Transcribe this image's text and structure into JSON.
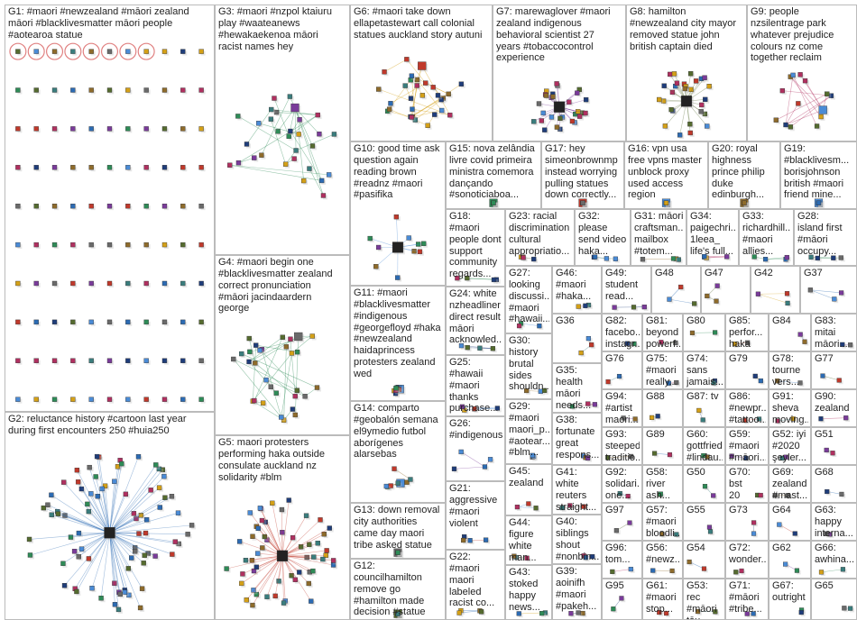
{
  "palette": [
    "#1f3d7a",
    "#2c6bb3",
    "#4a8bd6",
    "#7a3b9a",
    "#c0392b",
    "#2e8b57",
    "#8e6b2b",
    "#6a6a6a",
    "#d4a017",
    "#3a7d7d",
    "#b03060",
    "#556b2f"
  ],
  "groups": [
    {
      "id": "G1",
      "label": "G1: #maori #newzealand #māori zealand\nmāori #blacklivesmatter māori people\n#aotearoa statue",
      "fs": 11,
      "style": "grid",
      "n": 110,
      "rings": 8,
      "accent": "#1f3d7a"
    },
    {
      "id": "G2",
      "label": "G2: reluctance history #cartoon last year\nduring first encounters 250 #huia250",
      "fs": 11,
      "style": "star",
      "n": 80,
      "accent": "#2c6bb3"
    },
    {
      "id": "G3",
      "label": "G3: #maori #nzpol ktaiuru\nplay #waateanews\n#hewakaekenoa māori\nracist names hey",
      "fs": 11,
      "style": "cluster",
      "n": 30,
      "accent": "#2e8b57"
    },
    {
      "id": "G4",
      "label": "G4: #maori begin one\n#blacklivesmatter zealand\ncorrect pronunciation\n#māori jacindaardern\ngeorge",
      "fs": 11,
      "style": "cluster",
      "n": 30,
      "accent": "#2e8b57"
    },
    {
      "id": "G5",
      "label": "G5: maori protesters\nperforming haka outside\nconsulate auckland nz\nsolidarity #blm",
      "fs": 11,
      "style": "star",
      "n": 55,
      "accent": "#c0392b"
    },
    {
      "id": "G6",
      "label": "G6: #maori take down\nellapetastewart call colonial\nstatues auckland story autuni",
      "fs": 11,
      "style": "cluster",
      "n": 30,
      "accent": "#d4a017"
    },
    {
      "id": "G7",
      "label": "G7: marewaglover #maori\nzealand indigenous\nbehavioral scientist 27\nyears #tobaccocontrol\nexperience",
      "fs": 11,
      "style": "star",
      "n": 30,
      "accent": "#7a3b9a"
    },
    {
      "id": "G8",
      "label": "G8: hamilton\n#newzealand city mayor\nremoved statue john\nbritish captain died",
      "fs": 11,
      "style": "star",
      "n": 28,
      "accent": "#556b2f"
    },
    {
      "id": "G9",
      "label": "G9: people\nnzsilentrage park\nwhatever prejudice\ncolours nz come\ntogether reclaim",
      "fs": 11,
      "style": "cluster",
      "n": 14,
      "accent": "#b03060"
    },
    {
      "id": "G10",
      "label": "G10: good time ask\nquestion again\nreading brown\n#readnz #maori\n#pasifika",
      "fs": 11,
      "style": "star",
      "n": 10,
      "accent": "#4a8bd6"
    },
    {
      "id": "G15",
      "label": "G15: nova zelândia\nlivre covid primeira\nministra comemora\ndançando\n#sonoticiaboa...",
      "fs": 11,
      "style": "cluster",
      "n": 8,
      "accent": "#c0392b"
    },
    {
      "id": "G17",
      "label": "G17: hey\nsimeonbrownmp\ninstead worrying\npulling statues\ndown correctly...",
      "fs": 11,
      "style": "cluster",
      "n": 7,
      "accent": "#b03060"
    },
    {
      "id": "G16",
      "label": "G16: vpn usa\nfree vpns master\nunblock proxy\nused access\nregion",
      "fs": 11,
      "style": "cluster",
      "n": 5,
      "accent": "#2c6bb3"
    },
    {
      "id": "G20",
      "label": "G20: royal\nhighness\nprince philip\nduke\nedinburgh...",
      "fs": 11,
      "style": "cluster",
      "n": 5,
      "accent": "#6a6a6a"
    },
    {
      "id": "G19",
      "label": "G19:\n#blacklivesm...\nborisjohnson\nbritish #maori\nfriend mine...",
      "fs": 11,
      "style": "cluster",
      "n": 5,
      "accent": "#7a3b9a"
    },
    {
      "id": "G11",
      "label": "G11: #maori\n#blacklivesmatter\n#indigenous\n#georgefloyd #haka\n#newzealand\nhaidaprincess\nprotesters zealand\nwed",
      "fs": 11,
      "style": "cluster",
      "n": 9,
      "accent": "#4a8bd6"
    },
    {
      "id": "G14",
      "label": "G14: comparto\n#geobalón semana\nel9ymedio futbol\naborígenes\nalarsebas",
      "fs": 11,
      "style": "cluster",
      "n": 8,
      "accent": "#8e6b2b"
    },
    {
      "id": "G13",
      "label": "G13: down removal\ncity authorities\ncame day maori\ntribe asked statue",
      "fs": 11,
      "style": "cluster",
      "n": 7,
      "accent": "#3a7d7d"
    },
    {
      "id": "G12",
      "label": "G12:\ncouncilhamilton\nremove go\n#hamilton made\ndecision #statue\ncoloniser morning...",
      "fs": 11,
      "style": "cluster",
      "n": 7,
      "accent": "#556b2f"
    },
    {
      "id": "G18",
      "label": "G18:\n#maori\npeople dont\nsupport\ncommunity\nregards...",
      "fs": 11,
      "style": "small",
      "n": 4,
      "accent": "#2e8b57"
    },
    {
      "id": "G24",
      "label": "G24: white\nnzheadliner\ndirect result\nmāori\nacknowled...",
      "fs": 11,
      "style": "small",
      "n": 4,
      "accent": "#1f3d7a"
    },
    {
      "id": "G25",
      "label": "G25:\n#hawaii\n#maori\nthanks\npurchase...",
      "fs": 11,
      "style": "small",
      "n": 4,
      "accent": "#4a8bd6"
    },
    {
      "id": "G26",
      "label": "G26:\n#indigenous",
      "fs": 11,
      "style": "small",
      "n": 4,
      "accent": "#7a3b9a"
    },
    {
      "id": "G21",
      "label": "G21:\naggressive\n#maori\nviolent",
      "fs": 11,
      "style": "small",
      "n": 4,
      "accent": "#c0392b"
    },
    {
      "id": "G22",
      "label": "G22:\n#maori\nmaori\nlabeled\nracist co...",
      "fs": 11,
      "style": "small",
      "n": 4,
      "accent": "#2c6bb3"
    },
    {
      "id": "G23",
      "label": "G23: racial\ndiscrimination\ncultural\nappropriatio...",
      "fs": 11,
      "style": "small",
      "n": 4,
      "accent": "#556b2f"
    },
    {
      "id": "G32",
      "label": "G32:\nplease\nsend video\nhaka...",
      "fs": 11,
      "style": "small",
      "n": 4,
      "accent": "#3a7d7d"
    },
    {
      "id": "G31",
      "label": "G31: māori\ncraftsman...\nmailbox\n#totem...",
      "fs": 11,
      "style": "small",
      "n": 4,
      "accent": "#8e6b2b"
    },
    {
      "id": "G34",
      "label": "G34:\npaigechri...\n1leea_\nlife's full...",
      "fs": 11,
      "style": "small",
      "n": 4,
      "accent": "#b03060"
    },
    {
      "id": "G33",
      "label": "G33:\nrichardhill...\n#maori\nallies...",
      "fs": 11,
      "style": "small",
      "n": 4,
      "accent": "#2e8b57"
    },
    {
      "id": "G28",
      "label": "G28:\nisland first\n#māori\noccupy...",
      "fs": 11,
      "style": "small",
      "n": 4,
      "accent": "#2e8b57"
    },
    {
      "id": "G27",
      "label": "G27:\nlooking\ndiscussi...\n#maori\n#hawaii...",
      "fs": 11,
      "style": "small",
      "n": 3,
      "accent": "#4a8bd6"
    },
    {
      "id": "G46",
      "label": "G46:\n#maori\n#haka...",
      "fs": 11,
      "style": "small",
      "n": 3,
      "accent": "#7a3b9a"
    },
    {
      "id": "G49",
      "label": "G49:\nstudent\nread...",
      "fs": 11,
      "style": "small",
      "n": 3,
      "accent": "#1f3d7a"
    },
    {
      "id": "G48",
      "label": "G48",
      "fs": 11,
      "style": "small",
      "n": 3,
      "accent": "#2c6bb3"
    },
    {
      "id": "G47",
      "label": "G47",
      "fs": 11,
      "style": "small",
      "n": 3,
      "accent": "#556b2f"
    },
    {
      "id": "G42",
      "label": "G42",
      "fs": 11,
      "style": "small",
      "n": 3,
      "accent": "#d4a017"
    },
    {
      "id": "G37",
      "label": "G37",
      "fs": 11,
      "style": "small",
      "n": 3,
      "accent": "#2c6bb3"
    },
    {
      "id": "G30",
      "label": "G30:\nhistory\nbrutal\nsides\nshouldn...",
      "fs": 11,
      "style": "small",
      "n": 3,
      "accent": "#8e6b2b"
    },
    {
      "id": "G36",
      "label": "G36",
      "fs": 11,
      "style": "small",
      "n": 3,
      "accent": "#3a7d7d"
    },
    {
      "id": "G35",
      "label": "G35:\nhealth\nmāori\nneeds...",
      "fs": 11,
      "style": "small",
      "n": 3,
      "accent": "#b03060"
    },
    {
      "id": "G29",
      "label": "G29:\n#maori\nmaori_p...\n#aotear...\n#blm...",
      "fs": 11,
      "style": "small",
      "n": 3,
      "accent": "#c0392b"
    },
    {
      "id": "G38",
      "label": "G38:\nfortunate\ngreat\nrespons...",
      "fs": 11,
      "style": "small",
      "n": 3,
      "accent": "#2e8b57"
    },
    {
      "id": "G45",
      "label": "G45:\nzealand",
      "fs": 11,
      "style": "small",
      "n": 3,
      "accent": "#4a8bd6"
    },
    {
      "id": "G41",
      "label": "G41:\nwhite\nreuters\nstraight...",
      "fs": 11,
      "style": "small",
      "n": 3,
      "accent": "#6a6a6a"
    },
    {
      "id": "G44",
      "label": "G44:\nfigure\nwhite\nman...",
      "fs": 11,
      "style": "small",
      "n": 3,
      "accent": "#556b2f"
    },
    {
      "id": "G40",
      "label": "G40:\nsiblings\nshout\n#nonbin...",
      "fs": 11,
      "style": "small",
      "n": 3,
      "accent": "#7a3b9a"
    },
    {
      "id": "G43",
      "label": "G43:\nstoked\nhappy\nnews...",
      "fs": 11,
      "style": "small",
      "n": 3,
      "accent": "#d4a017"
    },
    {
      "id": "G39",
      "label": "G39:\naoinifh\n#maori\n#pakeh...",
      "fs": 11,
      "style": "small",
      "n": 3,
      "accent": "#1f3d7a"
    },
    {
      "id": "G82",
      "label": "G82:\nfacebo...\ninstagr...",
      "fs": 11,
      "style": "small",
      "n": 2,
      "accent": "#2c6bb3"
    },
    {
      "id": "G81",
      "label": "G81:\nbeyond\npowerf...",
      "fs": 11,
      "style": "small",
      "n": 2,
      "accent": "#556b2f"
    },
    {
      "id": "G80",
      "label": "G80",
      "fs": 11,
      "style": "small",
      "n": 2,
      "accent": "#2e8b57"
    },
    {
      "id": "G85",
      "label": "G85:\nperfor...\nhaka",
      "fs": 11,
      "style": "small",
      "n": 2,
      "accent": "#c0392b"
    },
    {
      "id": "G84",
      "label": "G84",
      "fs": 11,
      "style": "small",
      "n": 2,
      "accent": "#1f3d7a"
    },
    {
      "id": "G83",
      "label": "G83:\nmitai\nmāori...",
      "fs": 11,
      "style": "small",
      "n": 2,
      "accent": "#7a3b9a"
    },
    {
      "id": "G76",
      "label": "G76",
      "fs": 11,
      "style": "small",
      "n": 2,
      "accent": "#3a7d7d"
    },
    {
      "id": "G75",
      "label": "G75:\n#maori\nreally...",
      "fs": 11,
      "style": "small",
      "n": 2,
      "accent": "#b03060"
    },
    {
      "id": "G74",
      "label": "G74:\nsans\njamais...",
      "fs": 11,
      "style": "small",
      "n": 2,
      "accent": "#8e6b2b"
    },
    {
      "id": "G79",
      "label": "G79",
      "fs": 11,
      "style": "small",
      "n": 2,
      "accent": "#d4a017"
    },
    {
      "id": "G78",
      "label": "G78:\ntourne\nvers...",
      "fs": 11,
      "style": "small",
      "n": 2,
      "accent": "#2c6bb3"
    },
    {
      "id": "G77",
      "label": "G77",
      "fs": 11,
      "style": "small",
      "n": 2,
      "accent": "#556b2f"
    },
    {
      "id": "G94",
      "label": "G94:\n#artist\nmaori...",
      "fs": 11,
      "style": "small",
      "n": 2,
      "accent": "#7a3b9a"
    },
    {
      "id": "G88",
      "label": "G88",
      "fs": 11,
      "style": "small",
      "n": 2,
      "accent": "#2e8b57"
    },
    {
      "id": "G87",
      "label": "G87: tv",
      "fs": 11,
      "style": "small",
      "n": 2,
      "accent": "#1f3d7a"
    },
    {
      "id": "G86",
      "label": "G86:\n#newpr...\n#tattoo...",
      "fs": 11,
      "style": "small",
      "n": 2,
      "accent": "#c0392b"
    },
    {
      "id": "G91",
      "label": "G91:\nsheva\nmoving...",
      "fs": 11,
      "style": "small",
      "n": 2,
      "accent": "#3a7d7d"
    },
    {
      "id": "G90",
      "label": "G90:\nzealand",
      "fs": 11,
      "style": "small",
      "n": 2,
      "accent": "#b03060"
    },
    {
      "id": "G93",
      "label": "G93:\nsteeped\ntraditio...",
      "fs": 11,
      "style": "small",
      "n": 2,
      "accent": "#8e6b2b"
    },
    {
      "id": "G89",
      "label": "G89",
      "fs": 11,
      "style": "small",
      "n": 2,
      "accent": "#2c6bb3"
    },
    {
      "id": "G60",
      "label": "G60:\ngottfried\n#lindau...",
      "fs": 11,
      "style": "small",
      "n": 2,
      "accent": "#556b2f"
    },
    {
      "id": "G59",
      "label": "G59:\n#maori\n#māori...",
      "fs": 11,
      "style": "small",
      "n": 2,
      "accent": "#7a3b9a"
    },
    {
      "id": "G52",
      "label": "G52: iyi\n#2020\nşeyler...",
      "fs": 11,
      "style": "small",
      "n": 2,
      "accent": "#d4a017"
    },
    {
      "id": "G51",
      "label": "G51",
      "fs": 11,
      "style": "small",
      "n": 2,
      "accent": "#2e8b57"
    },
    {
      "id": "G92",
      "label": "G92:\nsolidari...\none...",
      "fs": 11,
      "style": "small",
      "n": 2,
      "accent": "#1f3d7a"
    },
    {
      "id": "G58",
      "label": "G58:\nriver\nash...",
      "fs": 11,
      "style": "small",
      "n": 2,
      "accent": "#c0392b"
    },
    {
      "id": "G50",
      "label": "G50",
      "fs": 11,
      "style": "small",
      "n": 2,
      "accent": "#3a7d7d"
    },
    {
      "id": "G70",
      "label": "G70: bst\n20",
      "fs": 11,
      "style": "small",
      "n": 2,
      "accent": "#b03060"
    },
    {
      "id": "G69",
      "label": "G69:\nzealand\n#mast...",
      "fs": 11,
      "style": "small",
      "n": 2,
      "accent": "#8e6b2b"
    },
    {
      "id": "G68",
      "label": "G68",
      "fs": 11,
      "style": "small",
      "n": 2,
      "accent": "#2c6bb3"
    },
    {
      "id": "G97",
      "label": "G97",
      "fs": 11,
      "style": "small",
      "n": 2,
      "accent": "#556b2f"
    },
    {
      "id": "G57",
      "label": "G57:\n#maori\nbloodli...",
      "fs": 11,
      "style": "small",
      "n": 2,
      "accent": "#7a3b9a"
    },
    {
      "id": "G55",
      "label": "G55",
      "fs": 11,
      "style": "small",
      "n": 2,
      "accent": "#2e8b57"
    },
    {
      "id": "G73",
      "label": "G73",
      "fs": 11,
      "style": "small",
      "n": 2,
      "accent": "#1f3d7a"
    },
    {
      "id": "G64",
      "label": "G64",
      "fs": 11,
      "style": "small",
      "n": 2,
      "accent": "#c0392b"
    },
    {
      "id": "G63",
      "label": "G63:\nhappy\ninterna...",
      "fs": 11,
      "style": "small",
      "n": 2,
      "accent": "#3a7d7d"
    },
    {
      "id": "G96",
      "label": "G96:\ntom...",
      "fs": 11,
      "style": "small",
      "n": 2,
      "accent": "#b03060"
    },
    {
      "id": "G56",
      "label": "G56:\n#newz...",
      "fs": 11,
      "style": "small",
      "n": 2,
      "accent": "#8e6b2b"
    },
    {
      "id": "G54",
      "label": "G54",
      "fs": 11,
      "style": "small",
      "n": 2,
      "accent": "#2c6bb3"
    },
    {
      "id": "G72",
      "label": "G72:\nwonder...",
      "fs": 11,
      "style": "small",
      "n": 2,
      "accent": "#556b2f"
    },
    {
      "id": "G62",
      "label": "G62",
      "fs": 11,
      "style": "small",
      "n": 2,
      "accent": "#7a3b9a"
    },
    {
      "id": "G66",
      "label": "G66:\nawhina...",
      "fs": 11,
      "style": "small",
      "n": 2,
      "accent": "#2e8b57"
    },
    {
      "id": "G95",
      "label": "G95",
      "fs": 11,
      "style": "small",
      "n": 2,
      "accent": "#1f3d7a"
    },
    {
      "id": "G61",
      "label": "G61:\n#maori\nstop...",
      "fs": 11,
      "style": "small",
      "n": 2,
      "accent": "#c0392b"
    },
    {
      "id": "G53",
      "label": "G53: rec\n#māori\ntōu...",
      "fs": 11,
      "style": "small",
      "n": 2,
      "accent": "#3a7d7d"
    },
    {
      "id": "G71",
      "label": "G71:\n#māori\n#tribe...",
      "fs": 11,
      "style": "small",
      "n": 2,
      "accent": "#b03060"
    },
    {
      "id": "G67",
      "label": "G67:\noutright",
      "fs": 11,
      "style": "small",
      "n": 2,
      "accent": "#8e6b2b"
    },
    {
      "id": "G65",
      "label": "G65",
      "fs": 11,
      "style": "small",
      "n": 2,
      "accent": "#2c6bb3"
    }
  ]
}
